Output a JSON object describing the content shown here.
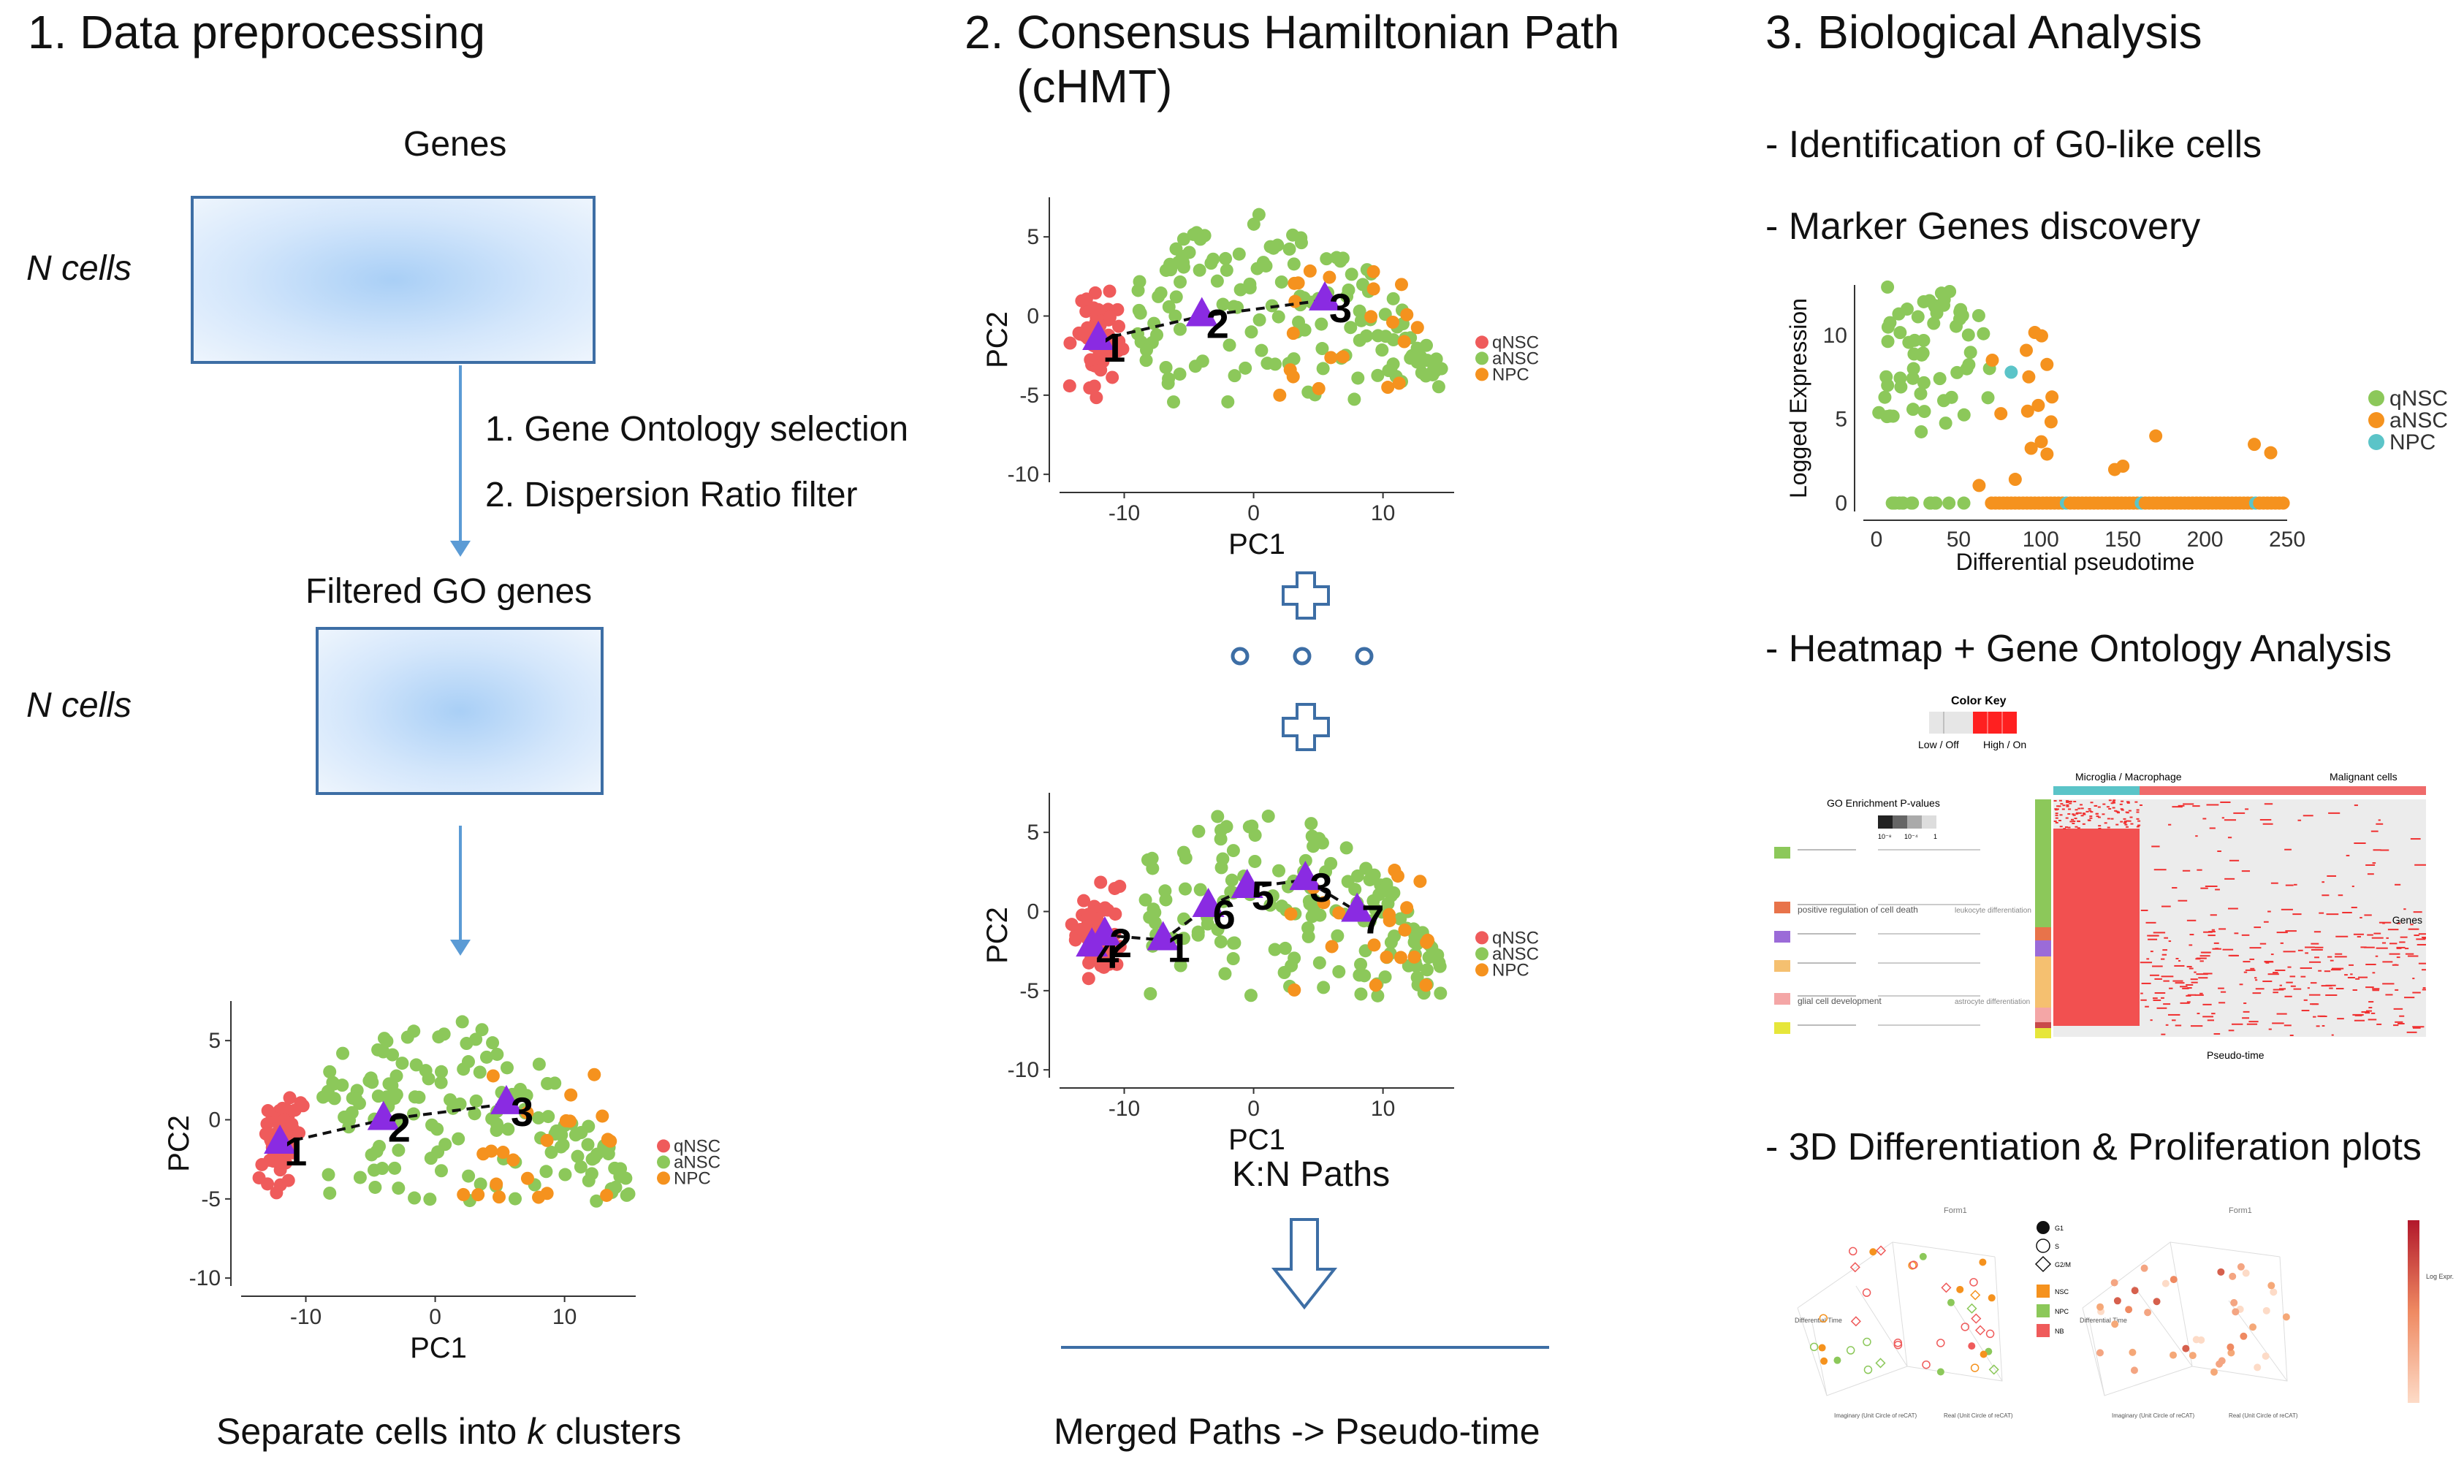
{
  "sections": {
    "s1": {
      "title": "1. Data preprocessing",
      "genes_label": "Genes",
      "n_cells_1": "N cells",
      "step1": "1. Gene Ontology selection",
      "step2": "2. Dispersion Ratio filter",
      "filtered_label": "Filtered GO genes",
      "n_cells_2": "N cells",
      "caption_pre": "Separate cells into ",
      "caption_k": "k",
      "caption_post": " clusters"
    },
    "s2": {
      "title": "2. Consensus Hamiltonian Path\n    (cHMT)",
      "kn_paths": "K:N Paths",
      "merged": "Merged Paths -> Pseudo-time"
    },
    "s3": {
      "title": "3. Biological Analysis",
      "item1": "- Identification of G0-like cells",
      "item2": "- Marker Genes discovery",
      "item3": "- Heatmap + Gene Ontology Analysis",
      "item4": "- 3D Differentiation & Proliferation plots"
    }
  },
  "colors": {
    "qNSC": "#ef5b5b",
    "aNSC": "#8cc85a",
    "NPC": "#f5921e",
    "NPC_teal": "#5bc4c8",
    "path_triangle": "#8a2be2",
    "accent_blue": "#3d6ea5",
    "arrow_blue": "#5b9bd5"
  },
  "chart_data": [
    {
      "type": "scatter",
      "id": "pca_clusters",
      "xlabel": "PC1",
      "ylabel": "PC2",
      "xticks": [
        -10,
        0,
        10
      ],
      "yticks": [
        5,
        0,
        -5,
        -10
      ],
      "legend": [
        "qNSC",
        "aNSC",
        "NPC"
      ],
      "path_nodes": [
        {
          "label": "1",
          "x": -12,
          "y": -1.5
        },
        {
          "label": "2",
          "x": -4,
          "y": 0
        },
        {
          "label": "3",
          "x": 5.5,
          "y": 1
        }
      ]
    },
    {
      "type": "scatter",
      "id": "pca_path_first",
      "xlabel": "PC1",
      "ylabel": "PC2",
      "xticks": [
        -10,
        0,
        10
      ],
      "yticks": [
        5,
        0,
        -5,
        -10
      ],
      "legend": [
        "qNSC",
        "aNSC",
        "NPC"
      ],
      "path_nodes": [
        {
          "label": "1",
          "x": -12,
          "y": -1.5
        },
        {
          "label": "2",
          "x": -4,
          "y": 0
        },
        {
          "label": "3",
          "x": 5.5,
          "y": 1
        }
      ]
    },
    {
      "type": "scatter",
      "id": "pca_path_last",
      "xlabel": "PC1",
      "ylabel": "PC2",
      "xticks": [
        -10,
        0,
        10
      ],
      "yticks": [
        5,
        0,
        -5,
        -10
      ],
      "legend": [
        "qNSC",
        "aNSC",
        "NPC"
      ],
      "path_nodes": [
        {
          "label": "4",
          "x": -12.5,
          "y": -2.2
        },
        {
          "label": "2",
          "x": -11.5,
          "y": -1.5
        },
        {
          "label": "1",
          "x": -7,
          "y": -1.8
        },
        {
          "label": "6",
          "x": -3.5,
          "y": 0.3
        },
        {
          "label": "5",
          "x": -0.5,
          "y": 1.5
        },
        {
          "label": "3",
          "x": 4,
          "y": 2
        },
        {
          "label": "7",
          "x": 8,
          "y": 0
        }
      ]
    },
    {
      "type": "scatter",
      "id": "marker_genes",
      "xlabel": "Differential pseudotime",
      "ylabel": "Logged Expression",
      "xticks": [
        0,
        50,
        100,
        150,
        200,
        250
      ],
      "yticks": [
        0,
        5,
        10
      ],
      "legend": [
        "qNSC",
        "aNSC",
        "NPC"
      ]
    }
  ],
  "heatmap": {
    "color_key_title": "Color Key",
    "key_low": "Low / Off",
    "key_high": "High / On",
    "go_title": "GO Enrichment P-values",
    "go_scale": [
      "10⁻⁸",
      "10⁻⁴",
      "1"
    ],
    "group_left": "Microglia / Macrophage",
    "group_right": "Malignant cells",
    "axis_right": "Genes",
    "axis_bottom": "Pseudo-time",
    "go_terms": [
      {
        "term": "positive regulation of cell death",
        "related": "leukocyte differentiation",
        "color": "#e8734a"
      },
      {
        "term": "glial cell development",
        "related": "astrocyte differentiation",
        "color": "#f4a6a6"
      }
    ]
  },
  "plots3d": {
    "left_title": "Form1",
    "right_title": "Form1",
    "legend_phase": [
      "G1",
      "S",
      "G2/M"
    ],
    "legend_type": [
      "NSC",
      "NPC",
      "NB"
    ],
    "axis_left": "Differential Time",
    "axis_bottom_left": "Imaginary (Unit Circle of reCAT)",
    "axis_bottom_right": "Real (Unit Circle of reCAT)",
    "colorbar_label": "Log Expr."
  }
}
